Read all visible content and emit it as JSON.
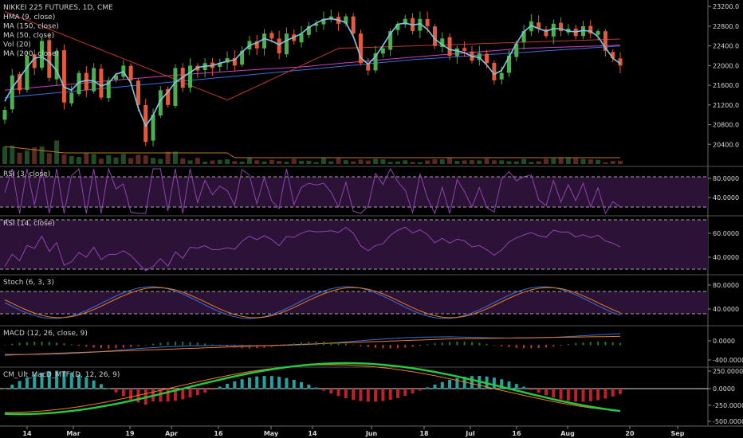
{
  "chart_data": {
    "type": "candlestick",
    "title": "NIKKEI 225 FUTURES, 1D, CME",
    "main": {
      "indicators": [
        "HMA (9, close)",
        "MA (150, close)",
        "MA (50, close)",
        "Vol (20)",
        "MA (200, close)"
      ],
      "ylim": [
        20000,
        23300
      ],
      "y_ticks": [
        "23200.0",
        "22800.0",
        "22400.0",
        "22000.0",
        "21600.0",
        "21200.0",
        "20800.0",
        "20400.0"
      ],
      "y_tick_values": [
        23200,
        22800,
        22400,
        22000,
        21600,
        21200,
        20800,
        20400
      ],
      "close_path": [
        21100,
        21800,
        21500,
        22200,
        21950,
        22500,
        21750,
        22300,
        21250,
        21450,
        21850,
        21500,
        21950,
        21350,
        21700,
        21800,
        22000,
        21700,
        21200,
        20450,
        21000,
        21500,
        21200,
        21950,
        21550,
        22000,
        21900,
        22050,
        21950,
        22050,
        22150,
        22000,
        22300,
        22500,
        22350,
        22650,
        22550,
        22250,
        22650,
        22500,
        22650,
        22800,
        22850,
        22950,
        23000,
        22850,
        23000,
        22650,
        22050,
        21900,
        22250,
        22350,
        22700,
        22850,
        22950,
        22700,
        22950,
        22800,
        22400,
        22550,
        22200,
        22350,
        22300,
        22100,
        22250,
        22050,
        21700,
        21850,
        22200,
        22450,
        22700,
        22900,
        22750,
        22600,
        22850,
        22700,
        22750,
        22600,
        22800,
        22650,
        22700,
        22300,
        22150,
        22000
      ],
      "volume_bars": 84
    },
    "rsi3": {
      "label": "RSI (3, close)",
      "y_ticks": [
        "80.0000",
        "40.0000"
      ]
    },
    "rsi14": {
      "label": "RSI (14, close)",
      "y_ticks": [
        "60.0000",
        "40.0000"
      ]
    },
    "stoch": {
      "label": "Stoch (6, 3, 3)",
      "y_ticks": [
        "80.0000",
        "40.0000"
      ]
    },
    "macd": {
      "label": "MACD (12, 26, close, 9)",
      "y_ticks": [
        "0.0000",
        "-400.0000"
      ]
    },
    "cm": {
      "label": "CM_Ult_MacD_MTF (D, 12, 26, 9)",
      "y_ticks": [
        "250.0000",
        "0.0000",
        "-250.0000",
        "-500.0000"
      ]
    },
    "x_labels": [
      "14",
      "Mar",
      "19",
      "Apr",
      "16",
      "May",
      "14",
      "Jun",
      "18",
      "Jul",
      "16",
      "Aug",
      "20",
      "Sep"
    ],
    "colors": {
      "up": "#4caf50",
      "down": "#e45a3c",
      "hma": "#7ec8e3",
      "ma150": "#c0392b",
      "ma50": "#d040c0",
      "ma200": "#3a6fd8",
      "rsi": "#8e44ad",
      "band": "#2d1238",
      "macd": "#3a6fd8",
      "signal": "#e67e22",
      "cm_up": "#27c93f",
      "cm_down": "#e0201a"
    }
  }
}
